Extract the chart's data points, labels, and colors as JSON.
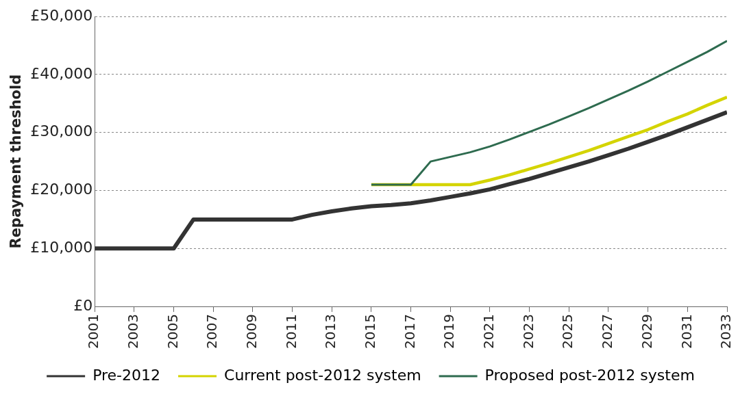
{
  "chart_data": {
    "type": "line",
    "ylabel": "Repayment threshold",
    "xlim": [
      2001,
      2033
    ],
    "xticks": [
      2001,
      2003,
      2005,
      2007,
      2009,
      2011,
      2013,
      2015,
      2017,
      2019,
      2021,
      2023,
      2025,
      2027,
      2029,
      2031,
      2033
    ],
    "ylim": [
      0,
      50000
    ],
    "yticks": [
      {
        "value": 0,
        "label": "£0"
      },
      {
        "value": 10000,
        "label": "£10,000"
      },
      {
        "value": 20000,
        "label": "£20,000"
      },
      {
        "value": 30000,
        "label": "£30,000"
      },
      {
        "value": 40000,
        "label": "£40,000"
      },
      {
        "value": 50000,
        "label": "£50,000"
      }
    ],
    "grid": "y",
    "legend": "bottom",
    "marker": "none",
    "line_style": "solid",
    "series": [
      {
        "name": "Pre-2012",
        "color": "#333333",
        "x": [
          2001,
          2002,
          2003,
          2004,
          2005,
          2006,
          2007,
          2008,
          2009,
          2010,
          2011,
          2012,
          2013,
          2014,
          2015,
          2016,
          2017,
          2018,
          2019,
          2020,
          2021,
          2022,
          2023,
          2024,
          2025,
          2026,
          2027,
          2028,
          2029,
          2030,
          2031,
          2032,
          2033
        ],
        "values": [
          10000,
          10000,
          10000,
          10000,
          10000,
          15000,
          15000,
          15000,
          15000,
          15000,
          15000,
          15800,
          16400,
          16900,
          17300,
          17500,
          17800,
          18300,
          18900,
          19500,
          20200,
          21100,
          22000,
          23000,
          24000,
          25000,
          26100,
          27200,
          28400,
          29600,
          30900,
          32200,
          33500
        ]
      },
      {
        "name": "Current post-2012 system",
        "color": "#d4d400",
        "x": [
          2015,
          2016,
          2017,
          2018,
          2019,
          2020,
          2021,
          2022,
          2023,
          2024,
          2025,
          2026,
          2027,
          2028,
          2029,
          2030,
          2031,
          2032,
          2033
        ],
        "values": [
          21000,
          21000,
          21000,
          21000,
          21000,
          21000,
          21800,
          22700,
          23700,
          24700,
          25800,
          26900,
          28100,
          29300,
          30500,
          31900,
          33200,
          34700,
          36100
        ]
      },
      {
        "name": "Proposed post-2012 system",
        "color": "#2e6b4f",
        "x": [
          2015,
          2016,
          2017,
          2018,
          2019,
          2020,
          2021,
          2022,
          2023,
          2024,
          2025,
          2026,
          2027,
          2028,
          2029,
          2030,
          2031,
          2032,
          2033
        ],
        "values": [
          21000,
          21000,
          21000,
          25000,
          25800,
          26600,
          27600,
          28800,
          30100,
          31400,
          32800,
          34200,
          35700,
          37200,
          38800,
          40500,
          42200,
          43900,
          45800
        ]
      }
    ]
  }
}
